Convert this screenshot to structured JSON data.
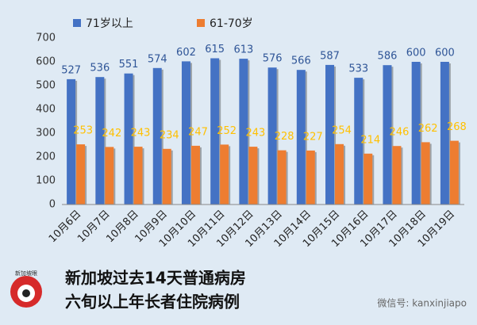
{
  "chart_data": {
    "type": "bar",
    "categories": [
      "10月6日",
      "10月7日",
      "10月8日",
      "10月9日",
      "10月10日",
      "10月11日",
      "10月12日",
      "10月13日",
      "10月14日",
      "10月15日",
      "10月16日",
      "10月17日",
      "10月18日",
      "10月19日"
    ],
    "series": [
      {
        "name": "71岁以上",
        "color": "#4472c4",
        "label_color": "#2f5597",
        "values": [
          527,
          536,
          551,
          574,
          602,
          615,
          613,
          576,
          566,
          587,
          533,
          586,
          600,
          600
        ]
      },
      {
        "name": "61-70岁",
        "color": "#ed7d31",
        "label_color": "#ffc000",
        "values": [
          253,
          242,
          243,
          234,
          247,
          252,
          243,
          228,
          227,
          254,
          214,
          246,
          262,
          268
        ]
      }
    ],
    "ylim": [
      0,
      700
    ],
    "yticks": [
      0,
      100,
      200,
      300,
      400,
      500,
      600,
      700
    ],
    "grid": false,
    "legend": "top"
  },
  "caption": [
    "新加坡过去14天普通病房",
    "六旬以上年长者住院病例"
  ],
  "logo": "新加坡眼",
  "watermark": "微信号: kanxinjiapo"
}
